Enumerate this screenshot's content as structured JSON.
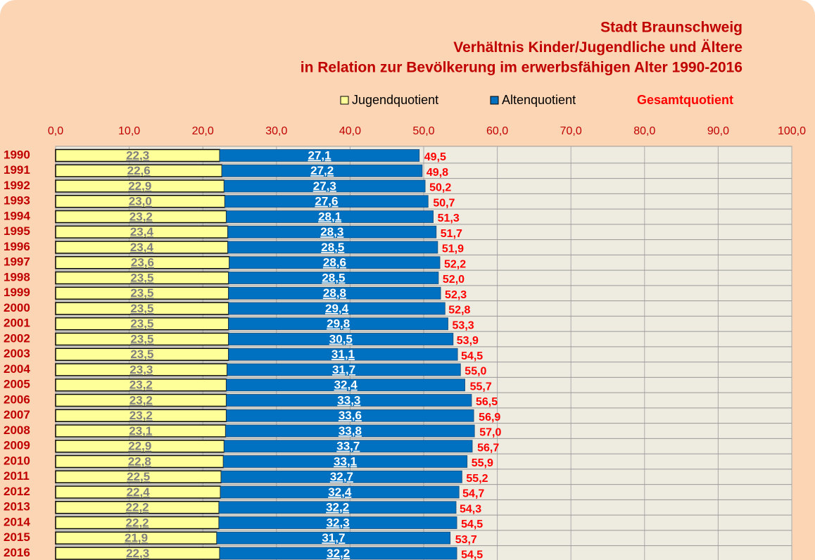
{
  "chart_data": {
    "type": "bar",
    "orientation": "horizontal",
    "stacked": true,
    "title": [
      "Stadt Braunschweig",
      "Verhältnis Kinder/Jugendliche und Ältere",
      "in Relation zur Bevölkerung im erwerbsfähigen Alter 1990-2016"
    ],
    "categories": [
      "1990",
      "1991",
      "1992",
      "1993",
      "1994",
      "1995",
      "1996",
      "1997",
      "1998",
      "1999",
      "2000",
      "2001",
      "2002",
      "2003",
      "2004",
      "2005",
      "2006",
      "2007",
      "2008",
      "2009",
      "2010",
      "2011",
      "2012",
      "2013",
      "2014",
      "2015",
      "2016"
    ],
    "series": [
      {
        "name": "Jugendquotient",
        "color": "#ffff99",
        "values": [
          22.3,
          22.6,
          22.9,
          23.0,
          23.2,
          23.4,
          23.4,
          23.6,
          23.5,
          23.5,
          23.5,
          23.5,
          23.5,
          23.5,
          23.3,
          23.2,
          23.2,
          23.2,
          23.1,
          22.9,
          22.8,
          22.5,
          22.4,
          22.2,
          22.2,
          21.9,
          22.3
        ],
        "value_labels": [
          "22,3",
          "22,6",
          "22,9",
          "23,0",
          "23,2",
          "23,4",
          "23,4",
          "23,6",
          "23,5",
          "23,5",
          "23,5",
          "23,5",
          "23,5",
          "23,5",
          "23,3",
          "23,2",
          "23,2",
          "23,2",
          "23,1",
          "22,9",
          "22,8",
          "22,5",
          "22,4",
          "22,2",
          "22,2",
          "21,9",
          "22,3"
        ]
      },
      {
        "name": "Altenquotient",
        "color": "#0070c0",
        "values": [
          27.1,
          27.2,
          27.3,
          27.6,
          28.1,
          28.3,
          28.5,
          28.6,
          28.5,
          28.8,
          29.4,
          29.8,
          30.5,
          31.1,
          31.7,
          32.4,
          33.3,
          33.6,
          33.8,
          33.7,
          33.1,
          32.7,
          32.4,
          32.2,
          32.3,
          31.7,
          32.2
        ],
        "value_labels": [
          "27,1",
          "27,2",
          "27,3",
          "27,6",
          "28,1",
          "28,3",
          "28,5",
          "28,6",
          "28,5",
          "28,8",
          "29,4",
          "29,8",
          "30,5",
          "31,1",
          "31,7",
          "32,4",
          "33,3",
          "33,6",
          "33,8",
          "33,7",
          "33,1",
          "32,7",
          "32,4",
          "32,2",
          "32,3",
          "31,7",
          "32,2"
        ]
      }
    ],
    "totals": {
      "name": "Gesamtquotient",
      "color": "#ff0000",
      "values": [
        49.5,
        49.8,
        50.2,
        50.7,
        51.3,
        51.7,
        51.9,
        52.2,
        52.0,
        52.3,
        52.8,
        53.3,
        53.9,
        54.5,
        55.0,
        55.7,
        56.5,
        56.9,
        57.0,
        56.7,
        55.9,
        55.2,
        54.7,
        54.3,
        54.5,
        53.7,
        54.5
      ],
      "value_labels": [
        "49,5",
        "49,8",
        "50,2",
        "50,7",
        "51,3",
        "51,7",
        "51,9",
        "52,2",
        "52,0",
        "52,3",
        "52,8",
        "53,3",
        "53,9",
        "54,5",
        "55,0",
        "55,7",
        "56,5",
        "56,9",
        "57,0",
        "56,7",
        "55,9",
        "55,2",
        "54,7",
        "54,3",
        "54,5",
        "53,7",
        "54,5"
      ]
    },
    "xlim": [
      0,
      100
    ],
    "xticks": [
      {
        "value": 0,
        "label": "0,0"
      },
      {
        "value": 10,
        "label": "10,0"
      },
      {
        "value": 20,
        "label": "20,0"
      },
      {
        "value": 30,
        "label": "30,0"
      },
      {
        "value": 40,
        "label": "40,0"
      },
      {
        "value": 50,
        "label": "50,0"
      },
      {
        "value": 60,
        "label": "60,0"
      },
      {
        "value": 70,
        "label": "70,0"
      },
      {
        "value": 80,
        "label": "80,0"
      },
      {
        "value": 90,
        "label": "90,0"
      },
      {
        "value": 100,
        "label": "100,0"
      }
    ],
    "grid": true,
    "legend": "top"
  }
}
